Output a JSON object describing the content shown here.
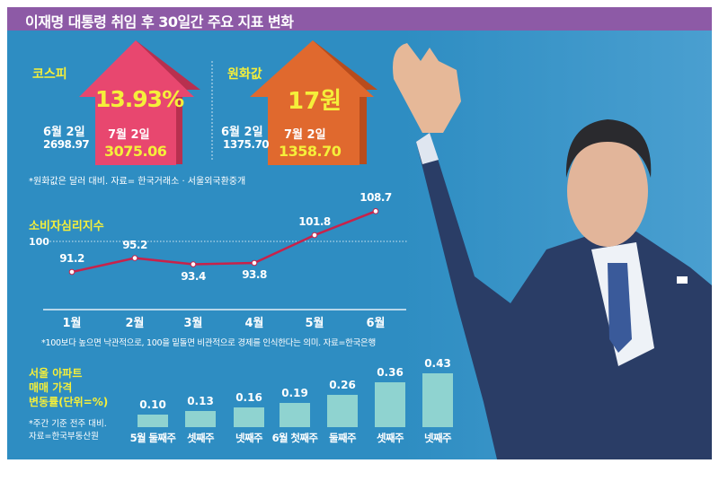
{
  "title": "이재명 대통령 취임 후 30일간 주요 지표 변화",
  "kospi": {
    "label": "코스피",
    "change": "13.93%",
    "start_date": "6월 2일",
    "start_value": "2698.97",
    "end_date": "7월 2일",
    "end_value": "3075.06",
    "color": "#e8476f"
  },
  "won": {
    "label": "원화값",
    "change": "17원",
    "start_date": "6월 2일",
    "start_value": "1375.70",
    "end_date": "7월 2일",
    "end_value": "1358.70",
    "color": "#e0692e"
  },
  "won_note": "*원화값은 달러 대비. 자료= 한국거래소 · 서울외국환중개",
  "chart_data": [
    {
      "type": "line",
      "title": "소비자심리지수",
      "categories": [
        "1월",
        "2월",
        "3월",
        "4월",
        "5월",
        "6월"
      ],
      "values": [
        91.2,
        95.2,
        93.4,
        93.8,
        101.8,
        108.7
      ],
      "value_labels": [
        "91.2",
        "95.2",
        "93.4",
        "93.8",
        "101.8",
        "108.7"
      ],
      "reference_line": {
        "value": 100,
        "label": "100"
      },
      "note": "*100보다 높으면 낙관적으로, 100을 밑돌면 비관적으로 경제를 인식한다는 의미. 자료=한국은행",
      "color": "#c8224a"
    },
    {
      "type": "bar",
      "title_lines": [
        "서울 아파트",
        "매매 가격",
        "변동률(단위=%)"
      ],
      "note_lines": [
        "*주간 기준 전주 대비.",
        "자료=한국부동산원"
      ],
      "categories": [
        "5월 둘째주",
        "셋째주",
        "넷째주",
        "6월 첫째주",
        "둘째주",
        "셋째주",
        "넷째주"
      ],
      "values": [
        0.1,
        0.13,
        0.16,
        0.19,
        0.26,
        0.36,
        0.43
      ],
      "value_labels": [
        "0.10",
        "0.13",
        "0.16",
        "0.19",
        "0.26",
        "0.36",
        "0.43"
      ],
      "color": "#8fd3d0"
    }
  ]
}
